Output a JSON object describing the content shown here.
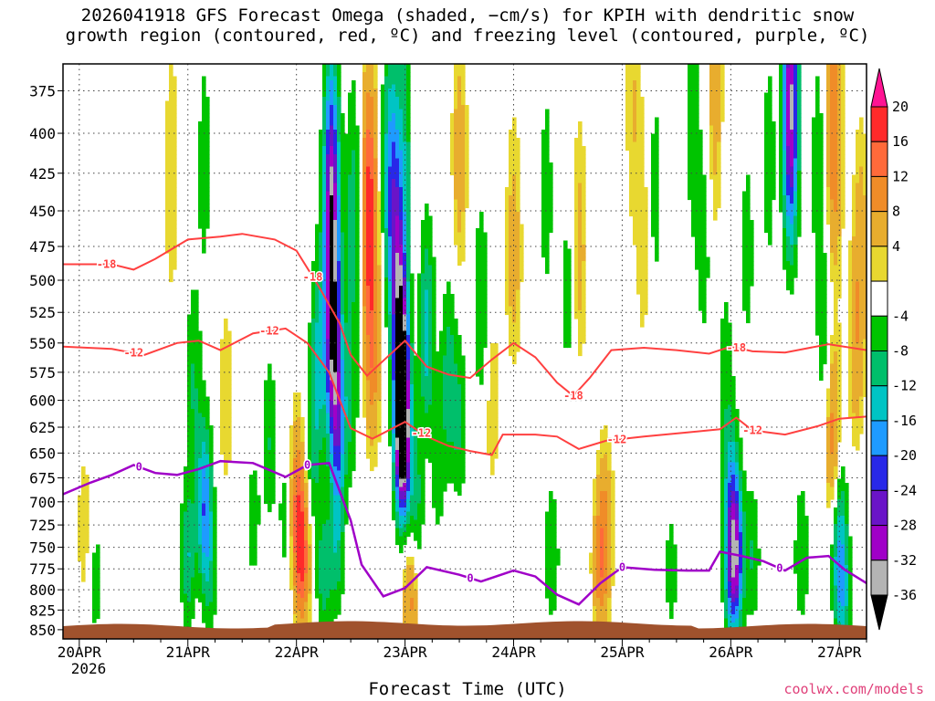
{
  "chart_data": {
    "type": "heatmap",
    "title_line1": "2026041918 GFS Forecast Omega (shaded, −cm/s) for KPIH with dendritic snow",
    "title_line2": "growth region (contoured, red, ºC) and freezing level (contoured, purple, ºC)",
    "xlabel": "Forecast Time (UTC)",
    "credit": "coolwx.com/models",
    "x_ticks": [
      "20APR",
      "21APR",
      "22APR",
      "23APR",
      "24APR",
      "25APR",
      "26APR",
      "27APR"
    ],
    "x_year_label": "2026",
    "x_range_days": [
      -0.15,
      7.25
    ],
    "y_ticks": [
      375,
      400,
      425,
      450,
      475,
      500,
      525,
      550,
      575,
      600,
      625,
      650,
      675,
      700,
      725,
      750,
      775,
      800,
      825,
      850
    ],
    "y_range_hpa": [
      360,
      862
    ],
    "y_scale": "log-pressure",
    "grid": "dotted",
    "colorbar": {
      "levels": [
        20,
        16,
        12,
        8,
        4,
        -4,
        -8,
        -12,
        -16,
        -20,
        -24,
        -28,
        -32,
        -36
      ],
      "colors": [
        "#ff1493",
        "#ff2a2a",
        "#ff6a3a",
        "#f08c28",
        "#e8ad2e",
        "#e8d830",
        "#ffffff",
        "#00c400",
        "#00bf6b",
        "#00c4c4",
        "#1e9bff",
        "#2828e8",
        "#6a14c8",
        "#a000c8",
        "#b4b4b4",
        "#000000"
      ]
    },
    "contours": {
      "dgz_minus18": {
        "label": "-18",
        "color": "#ff4040",
        "points": [
          [
            -0.15,
            488
          ],
          [
            0.3,
            488
          ],
          [
            0.5,
            492
          ],
          [
            0.7,
            484
          ],
          [
            1.0,
            470
          ],
          [
            1.3,
            468
          ],
          [
            1.5,
            466
          ],
          [
            1.8,
            470
          ],
          [
            2.0,
            478
          ],
          [
            2.2,
            504
          ],
          [
            2.4,
            534
          ],
          [
            2.5,
            560
          ],
          [
            2.65,
            578
          ],
          [
            2.8,
            565
          ],
          [
            3.0,
            548
          ],
          [
            3.2,
            570
          ],
          [
            3.4,
            577
          ],
          [
            3.6,
            580
          ],
          [
            3.8,
            564
          ],
          [
            4.0,
            550
          ],
          [
            4.2,
            562
          ],
          [
            4.4,
            584
          ],
          [
            4.55,
            596
          ],
          [
            4.7,
            580
          ],
          [
            4.9,
            556
          ],
          [
            5.2,
            554
          ],
          [
            5.5,
            556
          ],
          [
            5.8,
            559
          ],
          [
            6.0,
            553
          ],
          [
            6.2,
            557
          ],
          [
            6.5,
            558
          ],
          [
            6.9,
            551
          ],
          [
            7.25,
            556
          ]
        ]
      },
      "dgz_minus12": {
        "label": "-12",
        "color": "#ff4040",
        "points": [
          [
            -0.15,
            553
          ],
          [
            0.3,
            555
          ],
          [
            0.6,
            560
          ],
          [
            0.9,
            550
          ],
          [
            1.1,
            548
          ],
          [
            1.3,
            556
          ],
          [
            1.6,
            542
          ],
          [
            1.9,
            538
          ],
          [
            2.1,
            550
          ],
          [
            2.3,
            575
          ],
          [
            2.4,
            600
          ],
          [
            2.5,
            626
          ],
          [
            2.7,
            636
          ],
          [
            3.0,
            620
          ],
          [
            3.2,
            634
          ],
          [
            3.4,
            643
          ],
          [
            3.6,
            648
          ],
          [
            3.8,
            652
          ],
          [
            3.9,
            632
          ],
          [
            4.2,
            632
          ],
          [
            4.4,
            634
          ],
          [
            4.6,
            646
          ],
          [
            4.85,
            638
          ],
          [
            5.2,
            634
          ],
          [
            5.6,
            630
          ],
          [
            5.9,
            627
          ],
          [
            6.05,
            616
          ],
          [
            6.2,
            628
          ],
          [
            6.5,
            632
          ],
          [
            6.8,
            624
          ],
          [
            7.0,
            617
          ],
          [
            7.25,
            615
          ]
        ]
      },
      "freezing_0": {
        "label": "0",
        "color": "#a000c8",
        "points": [
          [
            -0.15,
            692
          ],
          [
            0.1,
            680
          ],
          [
            0.3,
            672
          ],
          [
            0.5,
            662
          ],
          [
            0.7,
            670
          ],
          [
            0.9,
            672
          ],
          [
            1.1,
            666
          ],
          [
            1.3,
            658
          ],
          [
            1.6,
            660
          ],
          [
            1.9,
            674
          ],
          [
            2.1,
            662
          ],
          [
            2.3,
            660
          ],
          [
            2.5,
            720
          ],
          [
            2.6,
            770
          ],
          [
            2.8,
            808
          ],
          [
            3.0,
            798
          ],
          [
            3.2,
            773
          ],
          [
            3.5,
            782
          ],
          [
            3.7,
            790
          ],
          [
            4.0,
            777
          ],
          [
            4.2,
            784
          ],
          [
            4.4,
            806
          ],
          [
            4.6,
            818
          ],
          [
            4.8,
            792
          ],
          [
            5.0,
            773
          ],
          [
            5.3,
            776
          ],
          [
            5.6,
            777
          ],
          [
            5.8,
            777
          ],
          [
            5.9,
            755
          ],
          [
            6.1,
            760
          ],
          [
            6.3,
            766
          ],
          [
            6.5,
            777
          ],
          [
            6.7,
            762
          ],
          [
            6.9,
            760
          ],
          [
            7.05,
            776
          ],
          [
            7.25,
            792
          ]
        ]
      }
    },
    "terrain_color": "#a0522d",
    "omega_cores": [
      {
        "x": 0.05,
        "p": 730,
        "v": 4
      },
      {
        "x": 0.12,
        "p": 520,
        "v": -4
      },
      {
        "x": 0.15,
        "p": 790,
        "v": -6
      },
      {
        "x": 0.4,
        "p": 820,
        "v": -4
      },
      {
        "x": 0.85,
        "p": 430,
        "v": 4
      },
      {
        "x": 1.0,
        "p": 760,
        "v": -12
      },
      {
        "x": 1.05,
        "p": 580,
        "v": -8
      },
      {
        "x": 1.15,
        "p": 700,
        "v": -18
      },
      {
        "x": 1.2,
        "p": 780,
        "v": -8
      },
      {
        "x": 1.15,
        "p": 420,
        "v": -6
      },
      {
        "x": 1.35,
        "p": 600,
        "v": 4
      },
      {
        "x": 1.6,
        "p": 720,
        "v": -6
      },
      {
        "x": 1.75,
        "p": 640,
        "v": -8
      },
      {
        "x": 1.9,
        "p": 720,
        "v": -6
      },
      {
        "x": 2.0,
        "p": 700,
        "v": 10
      },
      {
        "x": 2.05,
        "p": 760,
        "v": 16
      },
      {
        "x": 2.15,
        "p": 650,
        "v": -8
      },
      {
        "x": 2.2,
        "p": 560,
        "v": -12
      },
      {
        "x": 2.25,
        "p": 780,
        "v": -10
      },
      {
        "x": 2.3,
        "p": 430,
        "v": -8
      },
      {
        "x": 2.33,
        "p": 440,
        "v": -22
      },
      {
        "x": 2.33,
        "p": 540,
        "v": -28
      },
      {
        "x": 2.38,
        "p": 620,
        "v": -20
      },
      {
        "x": 2.37,
        "p": 750,
        "v": -10
      },
      {
        "x": 2.52,
        "p": 450,
        "v": -10
      },
      {
        "x": 2.5,
        "p": 600,
        "v": -8
      },
      {
        "x": 2.67,
        "p": 450,
        "v": 18
      },
      {
        "x": 2.7,
        "p": 560,
        "v": 10
      },
      {
        "x": 2.85,
        "p": 420,
        "v": -10
      },
      {
        "x": 2.9,
        "p": 450,
        "v": -14
      },
      {
        "x": 2.95,
        "p": 520,
        "v": -22
      },
      {
        "x": 2.97,
        "p": 600,
        "v": -26
      },
      {
        "x": 2.98,
        "p": 640,
        "v": -30
      },
      {
        "x": 3.05,
        "p": 800,
        "v": 10
      },
      {
        "x": 3.1,
        "p": 700,
        "v": -10
      },
      {
        "x": 3.2,
        "p": 540,
        "v": -14
      },
      {
        "x": 3.4,
        "p": 580,
        "v": -10
      },
      {
        "x": 3.3,
        "p": 670,
        "v": -6
      },
      {
        "x": 3.5,
        "p": 620,
        "v": -8
      },
      {
        "x": 3.0,
        "p": 390,
        "v": -8
      },
      {
        "x": 3.5,
        "p": 420,
        "v": 6
      },
      {
        "x": 3.7,
        "p": 520,
        "v": -8
      },
      {
        "x": 3.8,
        "p": 600,
        "v": 4
      },
      {
        "x": 4.0,
        "p": 480,
        "v": 6
      },
      {
        "x": 4.3,
        "p": 440,
        "v": -6
      },
      {
        "x": 4.35,
        "p": 760,
        "v": -8
      },
      {
        "x": 4.5,
        "p": 510,
        "v": -6
      },
      {
        "x": 4.8,
        "p": 770,
        "v": 10
      },
      {
        "x": 4.85,
        "p": 720,
        "v": 6
      },
      {
        "x": 4.6,
        "p": 480,
        "v": 6
      },
      {
        "x": 5.1,
        "p": 380,
        "v": 4
      },
      {
        "x": 5.2,
        "p": 470,
        "v": 4
      },
      {
        "x": 5.3,
        "p": 440,
        "v": -6
      },
      {
        "x": 5.45,
        "p": 780,
        "v": -6
      },
      {
        "x": 5.65,
        "p": 400,
        "v": -6
      },
      {
        "x": 5.75,
        "p": 480,
        "v": -6
      },
      {
        "x": 5.85,
        "p": 380,
        "v": 6
      },
      {
        "x": 5.95,
        "p": 570,
        "v": -6
      },
      {
        "x": 6.0,
        "p": 700,
        "v": -14
      },
      {
        "x": 6.05,
        "p": 760,
        "v": -24
      },
      {
        "x": 6.0,
        "p": 800,
        "v": -10
      },
      {
        "x": 6.2,
        "p": 760,
        "v": -8
      },
      {
        "x": 6.15,
        "p": 480,
        "v": -6
      },
      {
        "x": 6.35,
        "p": 420,
        "v": -6
      },
      {
        "x": 6.55,
        "p": 400,
        "v": -12
      },
      {
        "x": 6.55,
        "p": 378,
        "v": -22
      },
      {
        "x": 6.65,
        "p": 760,
        "v": -8
      },
      {
        "x": 6.8,
        "p": 420,
        "v": -6
      },
      {
        "x": 6.95,
        "p": 400,
        "v": 12
      },
      {
        "x": 6.95,
        "p": 640,
        "v": 12
      },
      {
        "x": 7.0,
        "p": 780,
        "v": -12
      },
      {
        "x": 7.05,
        "p": 820,
        "v": -8
      },
      {
        "x": 7.2,
        "p": 480,
        "v": 6
      },
      {
        "x": 7.15,
        "p": 560,
        "v": 6
      },
      {
        "x": 7.0,
        "p": 700,
        "v": -8
      },
      {
        "x": 6.85,
        "p": 540,
        "v": -6
      }
    ]
  }
}
